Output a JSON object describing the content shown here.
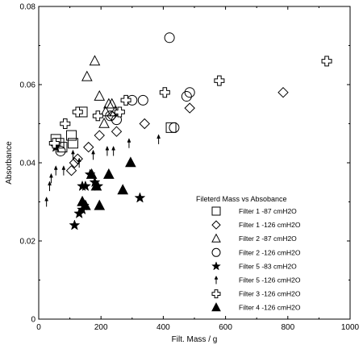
{
  "chart_data": {
    "type": "scatter",
    "xlabel": "Filt. Mass / g",
    "ylabel": "Absorbance",
    "xlim": [
      0,
      1000
    ],
    "ylim": [
      0,
      0.08
    ],
    "x_ticks": [
      0,
      200,
      400,
      600,
      800,
      1000
    ],
    "y_ticks": [
      0,
      0.02,
      0.04,
      0.06,
      0.08
    ],
    "x_tick_labels": [
      "0",
      "200",
      "400",
      "600",
      "800",
      "1000"
    ],
    "y_tick_labels": [
      "0",
      "0.02",
      "0.04",
      "0.06",
      "0.08"
    ],
    "grid": false,
    "legend_position": "bottom-right",
    "legend_title": "Fileterd Mass vs Absobance",
    "series": [
      {
        "name": "Filter 1 -87 cmH2O",
        "marker": "square",
        "filled": false,
        "points": [
          [
            55,
            0.046
          ],
          [
            65,
            0.045
          ],
          [
            75,
            0.044
          ],
          [
            105,
            0.047
          ],
          [
            110,
            0.045
          ],
          [
            140,
            0.053
          ],
          [
            425,
            0.049
          ]
        ]
      },
      {
        "name": "Filter 1 -126 cmH2O",
        "marker": "diamond",
        "filled": false,
        "points": [
          [
            105,
            0.038
          ],
          [
            115,
            0.04
          ],
          [
            125,
            0.041
          ],
          [
            160,
            0.044
          ],
          [
            195,
            0.047
          ],
          [
            235,
            0.052
          ],
          [
            250,
            0.048
          ],
          [
            340,
            0.05
          ],
          [
            485,
            0.054
          ],
          [
            785,
            0.058
          ]
        ]
      },
      {
        "name": "Filter 2 -87 cmH2O",
        "marker": "triangle",
        "filled": false,
        "points": [
          [
            155,
            0.062
          ],
          [
            180,
            0.066
          ],
          [
            195,
            0.057
          ],
          [
            210,
            0.05
          ],
          [
            215,
            0.053
          ],
          [
            225,
            0.055
          ],
          [
            235,
            0.055
          ],
          [
            245,
            0.053
          ]
        ]
      },
      {
        "name": "Filter 2 -126 cmH2O",
        "marker": "circle",
        "filled": false,
        "points": [
          [
            70,
            0.043
          ],
          [
            230,
            0.052
          ],
          [
            250,
            0.051
          ],
          [
            300,
            0.056
          ],
          [
            335,
            0.056
          ],
          [
            420,
            0.072
          ],
          [
            435,
            0.049
          ],
          [
            475,
            0.057
          ],
          [
            485,
            0.058
          ]
        ]
      },
      {
        "name": "Filter 5 -83 cmH2O",
        "marker": "star",
        "filled": true,
        "points": [
          [
            55,
            0.044
          ],
          [
            115,
            0.024
          ],
          [
            130,
            0.027
          ],
          [
            140,
            0.028
          ],
          [
            140,
            0.034
          ],
          [
            145,
            0.029
          ],
          [
            150,
            0.034
          ],
          [
            165,
            0.037
          ],
          [
            180,
            0.035
          ],
          [
            190,
            0.034
          ],
          [
            325,
            0.031
          ]
        ]
      },
      {
        "name": "Filter 5 -126 cmH2O",
        "marker": "arrow",
        "filled": true,
        "points": [
          [
            25,
            0.03
          ],
          [
            35,
            0.034
          ],
          [
            40,
            0.036
          ],
          [
            55,
            0.038
          ],
          [
            80,
            0.038
          ],
          [
            110,
            0.042
          ],
          [
            130,
            0.04
          ],
          [
            175,
            0.042
          ],
          [
            220,
            0.043
          ],
          [
            240,
            0.043
          ],
          [
            290,
            0.045
          ],
          [
            385,
            0.046
          ]
        ]
      },
      {
        "name": "Filter 3 -126 cmH2O",
        "marker": "cross",
        "filled": false,
        "points": [
          [
            50,
            0.045
          ],
          [
            85,
            0.05
          ],
          [
            125,
            0.053
          ],
          [
            190,
            0.052
          ],
          [
            260,
            0.053
          ],
          [
            280,
            0.056
          ],
          [
            405,
            0.058
          ],
          [
            580,
            0.061
          ],
          [
            925,
            0.066
          ]
        ]
      },
      {
        "name": "Filter 4 -126 cmH2O",
        "marker": "triangle",
        "filled": true,
        "points": [
          [
            140,
            0.03
          ],
          [
            150,
            0.029
          ],
          [
            170,
            0.037
          ],
          [
            185,
            0.034
          ],
          [
            195,
            0.029
          ],
          [
            225,
            0.037
          ],
          [
            270,
            0.033
          ],
          [
            295,
            0.04
          ]
        ]
      }
    ]
  }
}
